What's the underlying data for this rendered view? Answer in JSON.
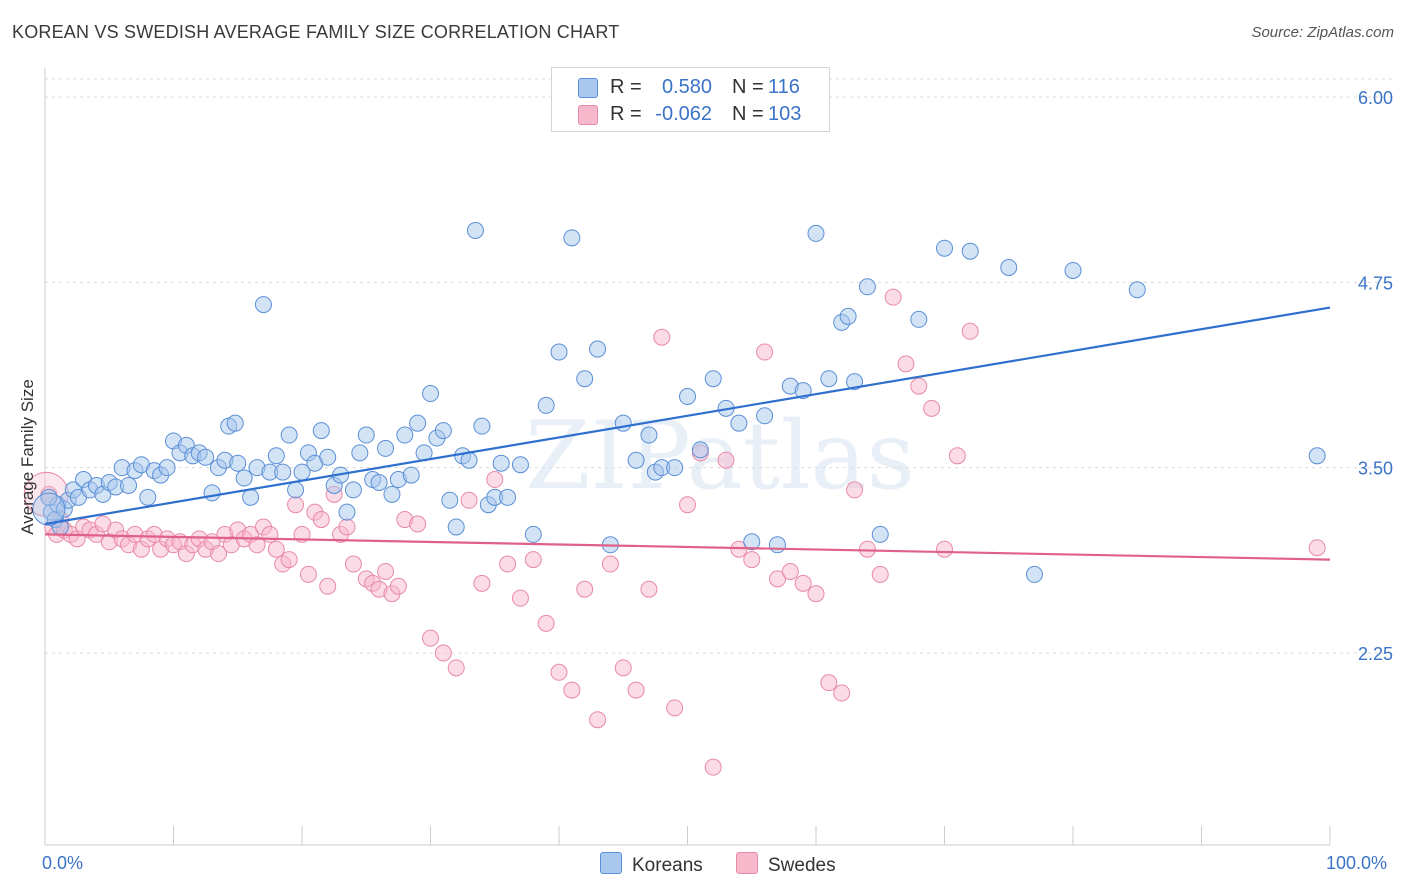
{
  "title": "KOREAN VS SWEDISH AVERAGE FAMILY SIZE CORRELATION CHART",
  "source": "Source: ZipAtlas.com",
  "watermark": "ZIPatlas",
  "legend": {
    "r_label": "R =",
    "n_label": "N =",
    "koreans": {
      "r": "0.580",
      "n": "116"
    },
    "swedes": {
      "r": "-0.062",
      "n": "103"
    }
  },
  "bottom_legend": [
    "Koreans",
    "Swedes"
  ],
  "x_axis": {
    "min_label": "0.0%",
    "max_label": "100.0%"
  },
  "colors": {
    "korean_fill": "#a8c8ee",
    "korean_stroke": "#5b8fd6",
    "korean_line": "#2f6fce",
    "swede_fill": "#f7b8cb",
    "swede_stroke": "#e88aa8",
    "swede_line": "#e0608c",
    "grid": "#d9d9d9",
    "axis_text": "#3a73c8"
  },
  "chart_data": {
    "type": "scatter",
    "xlabel": "",
    "ylabel": "Average Family Size",
    "xlim": [
      0,
      100
    ],
    "ylim": [
      1.0,
      6.2
    ],
    "y_ticks": [
      2.25,
      3.5,
      4.75,
      6.0
    ],
    "y_tick_labels": [
      "2.25",
      "3.50",
      "4.75",
      "6.00"
    ],
    "grid": true,
    "series": [
      {
        "name": "Koreans",
        "trend": {
          "x": [
            0,
            100
          ],
          "y": [
            3.12,
            4.58
          ]
        },
        "points": [
          [
            0.5,
            3.2
          ],
          [
            0.8,
            3.15
          ],
          [
            1.0,
            3.25
          ],
          [
            1.2,
            3.1
          ],
          [
            1.5,
            3.22
          ],
          [
            1.8,
            3.28
          ],
          [
            2.2,
            3.35
          ],
          [
            2.6,
            3.3
          ],
          [
            3.0,
            3.42
          ],
          [
            3.5,
            3.35
          ],
          [
            4.0,
            3.38
          ],
          [
            4.5,
            3.32
          ],
          [
            5.0,
            3.4
          ],
          [
            5.5,
            3.37
          ],
          [
            6.0,
            3.5
          ],
          [
            6.5,
            3.38
          ],
          [
            7.0,
            3.48
          ],
          [
            7.5,
            3.52
          ],
          [
            8.0,
            3.3
          ],
          [
            8.5,
            3.48
          ],
          [
            9.0,
            3.45
          ],
          [
            9.5,
            3.5
          ],
          [
            10.0,
            3.68
          ],
          [
            10.5,
            3.6
          ],
          [
            11.0,
            3.65
          ],
          [
            11.5,
            3.58
          ],
          [
            12.0,
            3.6
          ],
          [
            12.5,
            3.57
          ],
          [
            13.0,
            3.33
          ],
          [
            13.5,
            3.5
          ],
          [
            14.0,
            3.55
          ],
          [
            14.3,
            3.78
          ],
          [
            14.8,
            3.8
          ],
          [
            15.0,
            3.53
          ],
          [
            15.5,
            3.43
          ],
          [
            16.0,
            3.3
          ],
          [
            16.5,
            3.5
          ],
          [
            17.0,
            4.6
          ],
          [
            17.5,
            3.47
          ],
          [
            18.0,
            3.58
          ],
          [
            18.5,
            3.47
          ],
          [
            19.0,
            3.72
          ],
          [
            19.5,
            3.35
          ],
          [
            20.0,
            3.47
          ],
          [
            20.5,
            3.6
          ],
          [
            21.0,
            3.53
          ],
          [
            21.5,
            3.75
          ],
          [
            22.0,
            3.57
          ],
          [
            22.5,
            3.38
          ],
          [
            23.0,
            3.45
          ],
          [
            23.5,
            3.2
          ],
          [
            24.0,
            3.35
          ],
          [
            24.5,
            3.6
          ],
          [
            25.0,
            3.72
          ],
          [
            25.5,
            3.42
          ],
          [
            26.0,
            3.4
          ],
          [
            26.5,
            3.63
          ],
          [
            27.0,
            3.32
          ],
          [
            27.5,
            3.42
          ],
          [
            28.0,
            3.72
          ],
          [
            28.5,
            3.45
          ],
          [
            29.0,
            3.8
          ],
          [
            29.5,
            3.6
          ],
          [
            30.0,
            4.0
          ],
          [
            30.5,
            3.7
          ],
          [
            31.0,
            3.75
          ],
          [
            31.5,
            3.28
          ],
          [
            32.0,
            3.1
          ],
          [
            32.5,
            3.58
          ],
          [
            33.0,
            3.55
          ],
          [
            33.5,
            5.1
          ],
          [
            34.0,
            3.78
          ],
          [
            34.5,
            3.25
          ],
          [
            35.0,
            3.3
          ],
          [
            35.5,
            3.53
          ],
          [
            36.0,
            3.3
          ],
          [
            37.0,
            3.52
          ],
          [
            38.0,
            3.05
          ],
          [
            39.0,
            3.92
          ],
          [
            40.0,
            4.28
          ],
          [
            41.0,
            5.05
          ],
          [
            42.0,
            4.1
          ],
          [
            43.0,
            4.3
          ],
          [
            44.0,
            2.98
          ],
          [
            45.0,
            3.8
          ],
          [
            46.0,
            3.55
          ],
          [
            47.0,
            3.72
          ],
          [
            47.5,
            3.47
          ],
          [
            48.0,
            3.5
          ],
          [
            49.0,
            3.5
          ],
          [
            50.0,
            3.98
          ],
          [
            51.0,
            3.62
          ],
          [
            52.0,
            4.1
          ],
          [
            53.0,
            3.9
          ],
          [
            54.0,
            3.8
          ],
          [
            55.0,
            3.0
          ],
          [
            56.0,
            3.85
          ],
          [
            57.0,
            2.98
          ],
          [
            58.0,
            4.05
          ],
          [
            59.0,
            4.02
          ],
          [
            60.0,
            5.08
          ],
          [
            61.0,
            4.1
          ],
          [
            62.0,
            4.48
          ],
          [
            62.5,
            4.52
          ],
          [
            63.0,
            4.08
          ],
          [
            64.0,
            4.72
          ],
          [
            65.0,
            3.05
          ],
          [
            68.0,
            4.5
          ],
          [
            70.0,
            4.98
          ],
          [
            72.0,
            4.96
          ],
          [
            75.0,
            4.85
          ],
          [
            77.0,
            2.78
          ],
          [
            80.0,
            4.83
          ],
          [
            85.0,
            4.7
          ],
          [
            99.0,
            3.58
          ],
          [
            0.3,
            3.3
          ]
        ]
      },
      {
        "name": "Swedes",
        "trend": {
          "x": [
            0,
            100
          ],
          "y": [
            3.05,
            2.88
          ]
        },
        "points": [
          [
            0.3,
            3.32
          ],
          [
            0.6,
            3.1
          ],
          [
            0.9,
            3.05
          ],
          [
            1.2,
            3.15
          ],
          [
            1.5,
            3.08
          ],
          [
            2.0,
            3.05
          ],
          [
            2.5,
            3.02
          ],
          [
            3.0,
            3.1
          ],
          [
            3.5,
            3.08
          ],
          [
            4.0,
            3.05
          ],
          [
            4.5,
            3.12
          ],
          [
            5.0,
            3.0
          ],
          [
            5.5,
            3.08
          ],
          [
            6.0,
            3.02
          ],
          [
            6.5,
            2.98
          ],
          [
            7.0,
            3.05
          ],
          [
            7.5,
            2.95
          ],
          [
            8.0,
            3.02
          ],
          [
            8.5,
            3.05
          ],
          [
            9.0,
            2.95
          ],
          [
            9.5,
            3.02
          ],
          [
            10.0,
            2.98
          ],
          [
            10.5,
            3.0
          ],
          [
            11.0,
            2.92
          ],
          [
            11.5,
            2.98
          ],
          [
            12.0,
            3.02
          ],
          [
            12.5,
            2.95
          ],
          [
            13.0,
            3.0
          ],
          [
            13.5,
            2.92
          ],
          [
            14.0,
            3.05
          ],
          [
            14.5,
            2.98
          ],
          [
            15.0,
            3.08
          ],
          [
            15.5,
            3.02
          ],
          [
            16.0,
            3.05
          ],
          [
            16.5,
            2.98
          ],
          [
            17.0,
            3.1
          ],
          [
            17.5,
            3.05
          ],
          [
            18.0,
            2.95
          ],
          [
            18.5,
            2.85
          ],
          [
            19.0,
            2.88
          ],
          [
            19.5,
            3.25
          ],
          [
            20.0,
            3.05
          ],
          [
            20.5,
            2.78
          ],
          [
            21.0,
            3.2
          ],
          [
            21.5,
            3.15
          ],
          [
            22.0,
            2.7
          ],
          [
            22.5,
            3.32
          ],
          [
            23.0,
            3.05
          ],
          [
            23.5,
            3.1
          ],
          [
            24.0,
            2.85
          ],
          [
            25.0,
            2.75
          ],
          [
            25.5,
            2.72
          ],
          [
            26.0,
            2.68
          ],
          [
            26.5,
            2.8
          ],
          [
            27.0,
            2.65
          ],
          [
            27.5,
            2.7
          ],
          [
            28.0,
            3.15
          ],
          [
            29.0,
            3.12
          ],
          [
            30.0,
            2.35
          ],
          [
            31.0,
            2.25
          ],
          [
            32.0,
            2.15
          ],
          [
            33.0,
            3.28
          ],
          [
            34.0,
            2.72
          ],
          [
            35.0,
            3.42
          ],
          [
            36.0,
            2.85
          ],
          [
            37.0,
            2.62
          ],
          [
            38.0,
            2.88
          ],
          [
            39.0,
            2.45
          ],
          [
            40.0,
            2.12
          ],
          [
            41.0,
            2.0
          ],
          [
            42.0,
            2.68
          ],
          [
            43.0,
            1.8
          ],
          [
            44.0,
            2.85
          ],
          [
            45.0,
            2.15
          ],
          [
            46.0,
            2.0
          ],
          [
            47.0,
            2.68
          ],
          [
            48.0,
            4.38
          ],
          [
            49.0,
            1.88
          ],
          [
            50.0,
            3.25
          ],
          [
            51.0,
            3.6
          ],
          [
            52.0,
            1.48
          ],
          [
            53.0,
            3.55
          ],
          [
            54.0,
            2.95
          ],
          [
            55.0,
            2.88
          ],
          [
            56.0,
            4.28
          ],
          [
            57.0,
            2.75
          ],
          [
            58.0,
            2.8
          ],
          [
            59.0,
            2.72
          ],
          [
            60.0,
            2.65
          ],
          [
            61.0,
            2.05
          ],
          [
            62.0,
            1.98
          ],
          [
            63.0,
            3.35
          ],
          [
            64.0,
            2.95
          ],
          [
            65.0,
            2.78
          ],
          [
            66.0,
            4.65
          ],
          [
            67.0,
            4.2
          ],
          [
            68.0,
            4.05
          ],
          [
            69.0,
            3.9
          ],
          [
            70.0,
            2.95
          ],
          [
            71.0,
            3.58
          ],
          [
            72.0,
            4.42
          ],
          [
            99.0,
            2.96
          ]
        ]
      }
    ]
  }
}
